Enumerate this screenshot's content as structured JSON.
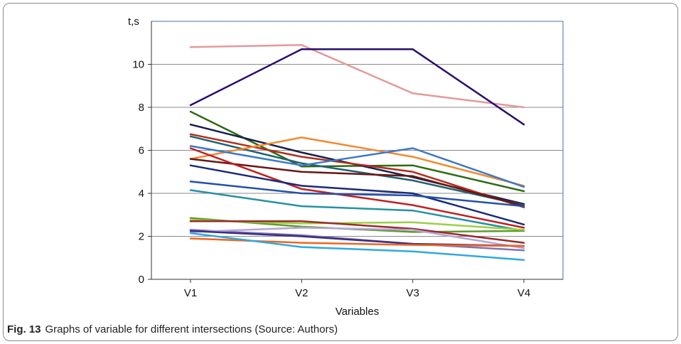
{
  "caption": {
    "label": "Fig. 13",
    "text": "Graphs of variable for different intersections (Source: Authors)"
  },
  "chart_data": {
    "type": "line",
    "title": "",
    "xlabel": "Variables",
    "ylabel": "t,s",
    "categories": [
      "V1",
      "V2",
      "V3",
      "V4"
    ],
    "ylim": [
      0,
      12
    ],
    "yticks": [
      0,
      2,
      4,
      6,
      8,
      10
    ],
    "grid": true,
    "legend": "none",
    "series": [
      {
        "color": "#e39a9a",
        "values": [
          10.8,
          10.9,
          8.65,
          8.0
        ]
      },
      {
        "color": "#2a0f6e",
        "values": [
          8.1,
          10.7,
          10.7,
          7.2
        ]
      },
      {
        "color": "#2f6b12",
        "values": [
          7.8,
          5.25,
          5.3,
          4.1
        ]
      },
      {
        "color": "#141e4a",
        "values": [
          7.2,
          5.9,
          4.75,
          3.5
        ]
      },
      {
        "color": "#b22d1a",
        "values": [
          6.75,
          5.7,
          5.0,
          3.35
        ]
      },
      {
        "color": "#1f6272",
        "values": [
          6.65,
          5.4,
          4.6,
          3.45
        ]
      },
      {
        "color": "#f4892c",
        "values": [
          5.6,
          6.6,
          5.7,
          4.35
        ]
      },
      {
        "color": "#3b79c8",
        "values": [
          6.2,
          5.3,
          6.1,
          4.3
        ]
      },
      {
        "color": "#6a1515",
        "values": [
          5.6,
          5.0,
          4.8,
          3.4
        ]
      },
      {
        "color": "#c21f1f",
        "values": [
          6.1,
          4.2,
          3.45,
          2.4
        ]
      },
      {
        "color": "#1a2a7a",
        "values": [
          5.3,
          4.35,
          4.0,
          2.55
        ]
      },
      {
        "color": "#2451a6",
        "values": [
          4.55,
          4.0,
          3.9,
          3.4
        ]
      },
      {
        "color": "#2591a4",
        "values": [
          4.15,
          3.4,
          3.2,
          2.25
        ]
      },
      {
        "color": "#5f9a2c",
        "values": [
          2.85,
          2.45,
          2.2,
          2.25
        ]
      },
      {
        "color": "#9ad044",
        "values": [
          2.75,
          2.6,
          2.65,
          2.3
        ]
      },
      {
        "color": "#9c2a2a",
        "values": [
          2.7,
          2.7,
          2.35,
          1.7
        ]
      },
      {
        "color": "#8073b8",
        "values": [
          2.3,
          2.05,
          1.65,
          1.35
        ]
      },
      {
        "color": "#b2a6d6",
        "values": [
          2.2,
          2.4,
          2.3,
          1.45
        ]
      },
      {
        "color": "#3d2e80",
        "values": [
          2.25,
          2.0,
          1.65,
          1.55
        ]
      },
      {
        "color": "#f0651d",
        "values": [
          1.9,
          1.7,
          1.6,
          1.55
        ]
      },
      {
        "color": "#30a8e0",
        "values": [
          2.15,
          1.5,
          1.3,
          0.9
        ]
      }
    ]
  }
}
